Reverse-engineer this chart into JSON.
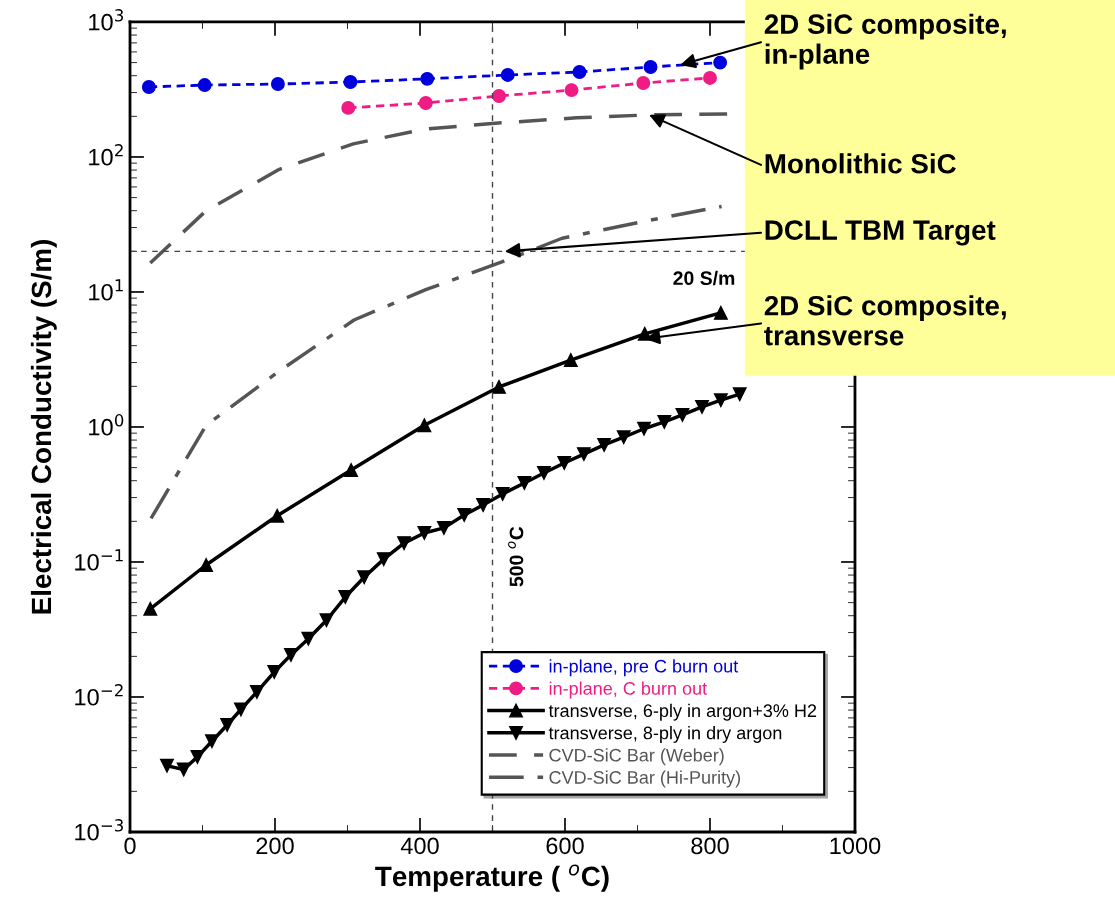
{
  "chart_data": {
    "type": "line",
    "xlabel": "Temperature ( $^{o}$C)",
    "ylabel": "Electrical Conductivity (S/m)",
    "log": "y",
    "xlim": [
      0,
      1000
    ],
    "xticks": [
      0,
      200,
      400,
      600,
      800,
      1000
    ],
    "ylim": [
      0.001,
      1000
    ],
    "yticks": [
      {
        "value": 0.001,
        "label": "10$^{−3}$"
      },
      {
        "value": 0.01,
        "label": "10$^{−2}$"
      },
      {
        "value": 0.1,
        "label": "10$^{−1}$"
      },
      {
        "value": 1,
        "label": "10$^{0}$"
      },
      {
        "value": 10,
        "label": "10$^{1}$"
      },
      {
        "value": 100,
        "label": "10$^{2}$"
      },
      {
        "value": 1000,
        "label": "10$^{3}$"
      }
    ],
    "grid": false,
    "legend": "bottom right",
    "series": [
      {
        "name": "in-plane, pre C burn out",
        "color": "#0000dd",
        "marker": "circle",
        "line_style": "dotted",
        "x": [
          26,
          103,
          204,
          304,
          410,
          521,
          620,
          718,
          814
        ],
        "values": [
          330,
          341,
          347,
          359,
          379,
          405,
          426,
          464,
          500
        ]
      },
      {
        "name": "in-plane, C burn out",
        "color": "#ee1c84",
        "marker": "circle",
        "line_style": "dotted",
        "x": [
          301,
          408,
          509,
          609,
          708,
          800
        ],
        "values": [
          231,
          251,
          283,
          313,
          353,
          385
        ]
      },
      {
        "name": "transverse, 6-ply in argon+3% H2",
        "color": "#000000",
        "marker": "triangle",
        "line_style": "solid",
        "x": [
          28,
          105,
          203,
          305,
          406,
          509,
          608,
          710,
          815
        ],
        "values": [
          0.045,
          0.095,
          0.22,
          0.48,
          1.03,
          1.98,
          3.13,
          4.9,
          7.0
        ]
      },
      {
        "name": "transverse, 8-ply in dry argon",
        "color": "#000000",
        "marker": "triangle_down",
        "line_style": "solid",
        "x": [
          51,
          74,
          93,
          113,
          134,
          153,
          175,
          199,
          222,
          246,
          271,
          297,
          323,
          350,
          378,
          406,
          433,
          461,
          487,
          514,
          544,
          571,
          599,
          626,
          654,
          681,
          709,
          737,
          762,
          789,
          815,
          841
        ],
        "values": [
          0.0031,
          0.0029,
          0.0036,
          0.0047,
          0.0062,
          0.0081,
          0.0109,
          0.0153,
          0.0205,
          0.027,
          0.037,
          0.055,
          0.077,
          0.105,
          0.138,
          0.164,
          0.179,
          0.223,
          0.264,
          0.319,
          0.385,
          0.456,
          0.541,
          0.63,
          0.736,
          0.84,
          0.97,
          1.09,
          1.23,
          1.41,
          1.58,
          1.75
        ]
      },
      {
        "name": "CVD-SiC Bar (Weber)",
        "color": "#555555",
        "marker": "none",
        "line_style": "dashed",
        "x": [
          28,
          105,
          206,
          308,
          407,
          512,
          616,
          716,
          828
        ],
        "values": [
          16.4,
          40,
          81,
          125,
          161,
          179,
          195,
          205,
          208
        ]
      },
      {
        "name": "CVD-SiC Bar (Hi-Purity)",
        "color": "#555555",
        "marker": "none",
        "line_style": "dashdot",
        "x": [
          29,
          105,
          204,
          309,
          408,
          513,
          596,
          717,
          816
        ],
        "values": [
          0.21,
          1.03,
          2.55,
          6.2,
          10.4,
          16.7,
          25,
          34,
          43
        ]
      }
    ],
    "ref_lines": [
      {
        "axis": "y",
        "value": 20,
        "label": "20 S/m",
        "color": "#444444",
        "line_style": "dashed"
      },
      {
        "axis": "x",
        "value": 500,
        "label": "500 $^{o}$C",
        "color": "#444444",
        "line_style": "dashed"
      }
    ],
    "annotations": [
      {
        "text": "2D SiC composite,\nin-plane",
        "x": 759,
        "y": 480
      },
      {
        "text": "Monolithic SiC",
        "x": 716,
        "y": 205
      },
      {
        "text": "DCLL TBM Target",
        "x": 517,
        "y": 20
      },
      {
        "text": "2D SiC composite,\ntransverse",
        "x": 710,
        "y": 4.5
      }
    ]
  }
}
